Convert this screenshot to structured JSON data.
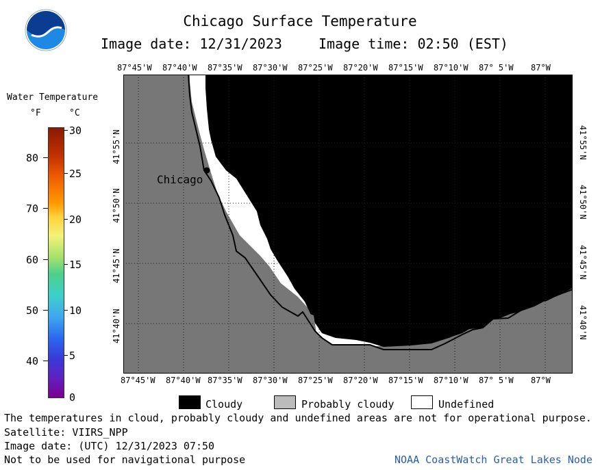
{
  "header": {
    "title": "Chicago Surface Temperature",
    "image_date": "Image date: 12/31/2023",
    "image_time": "Image time: 02:50 (EST)"
  },
  "logo": {
    "text": "NOAA"
  },
  "colorbar": {
    "title": "Water Temperature",
    "unit_f": "°F",
    "unit_c": "°C",
    "f_ticks": [
      "80",
      "70",
      "60",
      "50",
      "40"
    ],
    "c_ticks": [
      "30",
      "25",
      "20",
      "15",
      "10",
      "5",
      "0"
    ]
  },
  "map": {
    "city_label": "Chicago",
    "lon_ticks": [
      "87°45'W",
      "87°40'W",
      "87°35'W",
      "87°30'W",
      "87°25'W",
      "87°20'W",
      "87°15'W",
      "87°10'W",
      "87° 5'W",
      "87°W"
    ],
    "lat_ticks": [
      "41°55'N",
      "41°50'N",
      "41°45'N",
      "41°40'N"
    ],
    "colors": {
      "land": "#777777",
      "cloudy": "#000000",
      "probably_cloudy": "#bbbbbb",
      "undefined": "#ffffff"
    }
  },
  "legend": {
    "cloudy": "Cloudy",
    "probably_cloudy": "Probably cloudy",
    "undefined": "Undefined"
  },
  "footer": {
    "note": "The temperatures in cloud, probably cloudy and undefined areas are not for operational purpose.",
    "satellite": "Satellite: VIIRS_NPP",
    "utc_date": "Image date: (UTC) 12/31/2023  07:50",
    "nav_warning": "Not to be used for navigational purpose",
    "credit": "NOAA CoastWatch Great Lakes Node"
  }
}
